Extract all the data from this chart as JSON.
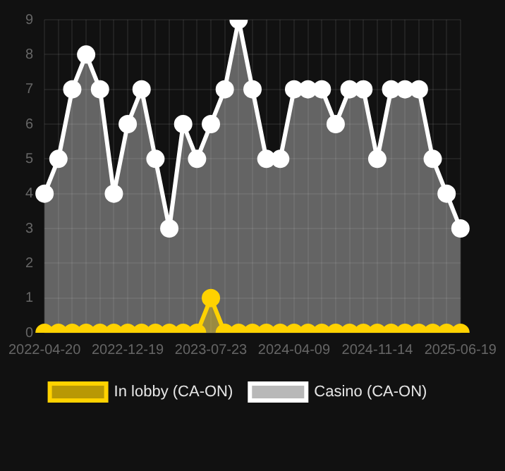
{
  "chart_data": {
    "type": "area",
    "categories": [
      "2022-04-20",
      null,
      null,
      null,
      null,
      null,
      "2022-12-19",
      null,
      null,
      null,
      null,
      null,
      "2023-07-23",
      null,
      null,
      null,
      null,
      null,
      "2024-04-09",
      null,
      null,
      null,
      null,
      null,
      "2024-11-14",
      null,
      null,
      null,
      null,
      null,
      "2025-06-19"
    ],
    "series": [
      {
        "name": "In lobby (CA-ON)",
        "color": "#ffd200",
        "values": [
          0,
          0,
          0,
          0,
          0,
          0,
          0,
          0,
          0,
          0,
          0,
          0,
          1,
          0,
          0,
          0,
          0,
          0,
          0,
          0,
          0,
          0,
          0,
          0,
          0,
          0,
          0,
          0,
          0,
          0,
          0
        ]
      },
      {
        "name": "Casino (CA-ON)",
        "color": "#ffffff",
        "values": [
          4,
          5,
          7,
          8,
          7,
          4,
          6,
          7,
          5,
          3,
          6,
          5,
          6,
          7,
          9,
          7,
          5,
          5,
          7,
          7,
          7,
          6,
          7,
          7,
          5,
          7,
          7,
          7,
          5,
          4,
          3
        ]
      }
    ],
    "ylim": [
      0,
      9
    ],
    "yticks": [
      0,
      1,
      2,
      3,
      4,
      5,
      6,
      7,
      8,
      9
    ],
    "grid": true,
    "legend": "bottom",
    "marker": "circle"
  }
}
